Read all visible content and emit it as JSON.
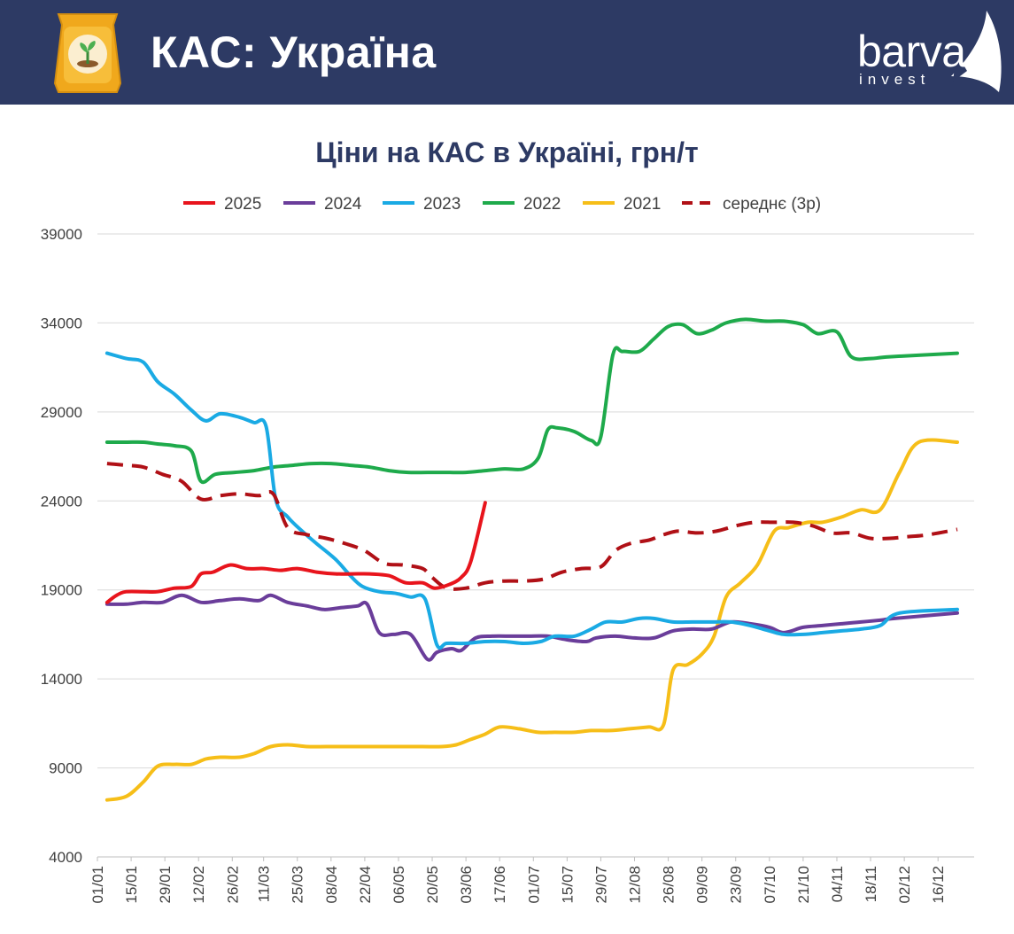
{
  "header": {
    "title": "КАС: Україна",
    "bg_color": "#2d3a64",
    "icon": "fertilizer-bag-icon",
    "brand": {
      "name": "barva",
      "sub": "invest"
    }
  },
  "chart_data": {
    "type": "line",
    "title": "Ціни на КАС в Україні, грн/т",
    "xlabel": "",
    "ylabel": "",
    "ylim": [
      4000,
      39000
    ],
    "yticks": [
      "39000",
      "34000",
      "29000",
      "24000",
      "19000",
      "14000",
      "9000",
      "4000"
    ],
    "x_tick_labels": [
      "01/01",
      "15/01",
      "29/01",
      "12/02",
      "26/02",
      "11/03",
      "25/03",
      "08/04",
      "22/04",
      "06/05",
      "20/05",
      "03/06",
      "17/06",
      "01/07",
      "15/07",
      "29/07",
      "12/08",
      "26/08",
      "09/09",
      "23/09",
      "07/10",
      "21/10",
      "04/11",
      "18/11",
      "02/12",
      "16/12"
    ],
    "x_unit": "day of year",
    "x_range": [
      1,
      365
    ],
    "grid": "horizontal",
    "legend_position": "top",
    "series": [
      {
        "name": "2025",
        "color": "#e8141c",
        "dashed": false,
        "points": [
          [
            5,
            18300
          ],
          [
            9,
            18700
          ],
          [
            13,
            18900
          ],
          [
            20,
            18900
          ],
          [
            26,
            18900
          ],
          [
            33,
            19100
          ],
          [
            40,
            19200
          ],
          [
            44,
            19900
          ],
          [
            49,
            20000
          ],
          [
            56,
            20400
          ],
          [
            63,
            20200
          ],
          [
            70,
            20200
          ],
          [
            77,
            20100
          ],
          [
            84,
            20200
          ],
          [
            92,
            20000
          ],
          [
            100,
            19900
          ],
          [
            107,
            19900
          ],
          [
            114,
            19900
          ],
          [
            122,
            19800
          ],
          [
            129,
            19400
          ],
          [
            136,
            19400
          ],
          [
            141,
            19100
          ],
          [
            147,
            19300
          ],
          [
            152,
            19700
          ],
          [
            156,
            20600
          ],
          [
            162,
            23900
          ]
        ]
      },
      {
        "name": "2024",
        "color": "#6a3d9a",
        "dashed": false,
        "points": [
          [
            5,
            18200
          ],
          [
            13,
            18200
          ],
          [
            20,
            18300
          ],
          [
            28,
            18300
          ],
          [
            36,
            18700
          ],
          [
            44,
            18300
          ],
          [
            52,
            18400
          ],
          [
            60,
            18500
          ],
          [
            68,
            18400
          ],
          [
            73,
            18700
          ],
          [
            80,
            18300
          ],
          [
            88,
            18100
          ],
          [
            95,
            17900
          ],
          [
            102,
            18000
          ],
          [
            109,
            18100
          ],
          [
            113,
            18200
          ],
          [
            118,
            16600
          ],
          [
            124,
            16500
          ],
          [
            131,
            16500
          ],
          [
            138,
            15100
          ],
          [
            142,
            15500
          ],
          [
            148,
            15700
          ],
          [
            152,
            15600
          ],
          [
            158,
            16300
          ],
          [
            165,
            16400
          ],
          [
            173,
            16400
          ],
          [
            180,
            16400
          ],
          [
            188,
            16400
          ],
          [
            196,
            16200
          ],
          [
            204,
            16100
          ],
          [
            208,
            16300
          ],
          [
            216,
            16400
          ],
          [
            224,
            16300
          ],
          [
            232,
            16300
          ],
          [
            240,
            16700
          ],
          [
            248,
            16800
          ],
          [
            256,
            16800
          ],
          [
            264,
            17200
          ],
          [
            272,
            17100
          ],
          [
            280,
            16900
          ],
          [
            286,
            16600
          ],
          [
            294,
            16900
          ],
          [
            302,
            17000
          ],
          [
            310,
            17100
          ],
          [
            318,
            17200
          ],
          [
            326,
            17300
          ],
          [
            332,
            17400
          ],
          [
            358,
            17700
          ]
        ]
      },
      {
        "name": "2023",
        "color": "#1aaae4",
        "dashed": false,
        "points": [
          [
            5,
            32300
          ],
          [
            13,
            32000
          ],
          [
            20,
            31800
          ],
          [
            26,
            30700
          ],
          [
            33,
            30000
          ],
          [
            40,
            29100
          ],
          [
            46,
            28500
          ],
          [
            52,
            28900
          ],
          [
            60,
            28700
          ],
          [
            66,
            28400
          ],
          [
            71,
            28200
          ],
          [
            75,
            24100
          ],
          [
            80,
            23100
          ],
          [
            86,
            22300
          ],
          [
            92,
            21600
          ],
          [
            100,
            20700
          ],
          [
            106,
            19800
          ],
          [
            111,
            19200
          ],
          [
            118,
            18900
          ],
          [
            125,
            18800
          ],
          [
            131,
            18600
          ],
          [
            137,
            18500
          ],
          [
            142,
            15900
          ],
          [
            146,
            16000
          ],
          [
            154,
            16000
          ],
          [
            162,
            16100
          ],
          [
            170,
            16100
          ],
          [
            178,
            16000
          ],
          [
            185,
            16100
          ],
          [
            191,
            16400
          ],
          [
            199,
            16400
          ],
          [
            206,
            16800
          ],
          [
            212,
            17200
          ],
          [
            219,
            17200
          ],
          [
            226,
            17400
          ],
          [
            232,
            17400
          ],
          [
            240,
            17200
          ],
          [
            248,
            17200
          ],
          [
            256,
            17200
          ],
          [
            264,
            17200
          ],
          [
            272,
            17000
          ],
          [
            280,
            16700
          ],
          [
            286,
            16500
          ],
          [
            294,
            16500
          ],
          [
            302,
            16600
          ],
          [
            310,
            16700
          ],
          [
            318,
            16800
          ],
          [
            326,
            17000
          ],
          [
            334,
            17700
          ],
          [
            358,
            17900
          ]
        ]
      },
      {
        "name": "2022",
        "color": "#1eaa4b",
        "dashed": false,
        "points": [
          [
            5,
            27300
          ],
          [
            13,
            27300
          ],
          [
            20,
            27300
          ],
          [
            26,
            27200
          ],
          [
            33,
            27100
          ],
          [
            40,
            26800
          ],
          [
            44,
            25100
          ],
          [
            50,
            25500
          ],
          [
            58,
            25600
          ],
          [
            66,
            25700
          ],
          [
            74,
            25900
          ],
          [
            82,
            26000
          ],
          [
            90,
            26100
          ],
          [
            98,
            26100
          ],
          [
            106,
            26000
          ],
          [
            114,
            25900
          ],
          [
            122,
            25700
          ],
          [
            130,
            25600
          ],
          [
            138,
            25600
          ],
          [
            146,
            25600
          ],
          [
            154,
            25600
          ],
          [
            162,
            25700
          ],
          [
            170,
            25800
          ],
          [
            178,
            25800
          ],
          [
            184,
            26400
          ],
          [
            188,
            28000
          ],
          [
            192,
            28100
          ],
          [
            199,
            27900
          ],
          [
            206,
            27400
          ],
          [
            210,
            27600
          ],
          [
            215,
            32200
          ],
          [
            219,
            32400
          ],
          [
            226,
            32400
          ],
          [
            232,
            33100
          ],
          [
            238,
            33800
          ],
          [
            244,
            33900
          ],
          [
            250,
            33400
          ],
          [
            256,
            33600
          ],
          [
            262,
            34000
          ],
          [
            270,
            34200
          ],
          [
            278,
            34100
          ],
          [
            286,
            34100
          ],
          [
            294,
            33900
          ],
          [
            300,
            33400
          ],
          [
            308,
            33500
          ],
          [
            314,
            32100
          ],
          [
            322,
            32000
          ],
          [
            330,
            32100
          ],
          [
            358,
            32300
          ]
        ]
      },
      {
        "name": "2021",
        "color": "#f6be18",
        "dashed": false,
        "points": [
          [
            5,
            7200
          ],
          [
            13,
            7400
          ],
          [
            20,
            8200
          ],
          [
            26,
            9100
          ],
          [
            33,
            9200
          ],
          [
            40,
            9200
          ],
          [
            46,
            9500
          ],
          [
            52,
            9600
          ],
          [
            60,
            9600
          ],
          [
            66,
            9800
          ],
          [
            73,
            10200
          ],
          [
            80,
            10300
          ],
          [
            88,
            10200
          ],
          [
            96,
            10200
          ],
          [
            104,
            10200
          ],
          [
            112,
            10200
          ],
          [
            120,
            10200
          ],
          [
            128,
            10200
          ],
          [
            136,
            10200
          ],
          [
            144,
            10200
          ],
          [
            150,
            10300
          ],
          [
            156,
            10600
          ],
          [
            162,
            10900
          ],
          [
            168,
            11300
          ],
          [
            176,
            11200
          ],
          [
            184,
            11000
          ],
          [
            191,
            11000
          ],
          [
            199,
            11000
          ],
          [
            206,
            11100
          ],
          [
            214,
            11100
          ],
          [
            222,
            11200
          ],
          [
            230,
            11300
          ],
          [
            236,
            11400
          ],
          [
            240,
            14500
          ],
          [
            246,
            14800
          ],
          [
            252,
            15400
          ],
          [
            257,
            16400
          ],
          [
            262,
            18600
          ],
          [
            268,
            19400
          ],
          [
            275,
            20400
          ],
          [
            282,
            22300
          ],
          [
            288,
            22500
          ],
          [
            296,
            22800
          ],
          [
            302,
            22800
          ],
          [
            310,
            23100
          ],
          [
            318,
            23500
          ],
          [
            326,
            23500
          ],
          [
            334,
            25600
          ],
          [
            342,
            27300
          ],
          [
            358,
            27300
          ]
        ]
      },
      {
        "name": "середнє (3р)",
        "color": "#b01016",
        "dashed": true,
        "points": [
          [
            5,
            26100
          ],
          [
            13,
            26000
          ],
          [
            20,
            25900
          ],
          [
            28,
            25500
          ],
          [
            36,
            25100
          ],
          [
            44,
            24100
          ],
          [
            52,
            24300
          ],
          [
            60,
            24400
          ],
          [
            68,
            24300
          ],
          [
            74,
            24400
          ],
          [
            80,
            22500
          ],
          [
            88,
            22100
          ],
          [
            96,
            21900
          ],
          [
            104,
            21600
          ],
          [
            112,
            21200
          ],
          [
            120,
            20500
          ],
          [
            128,
            20400
          ],
          [
            136,
            20200
          ],
          [
            140,
            19700
          ],
          [
            146,
            19100
          ],
          [
            154,
            19100
          ],
          [
            162,
            19400
          ],
          [
            170,
            19500
          ],
          [
            178,
            19500
          ],
          [
            186,
            19600
          ],
          [
            194,
            20000
          ],
          [
            202,
            20200
          ],
          [
            210,
            20300
          ],
          [
            216,
            21200
          ],
          [
            222,
            21600
          ],
          [
            230,
            21800
          ],
          [
            236,
            22100
          ],
          [
            242,
            22300
          ],
          [
            250,
            22200
          ],
          [
            258,
            22300
          ],
          [
            266,
            22600
          ],
          [
            274,
            22800
          ],
          [
            282,
            22800
          ],
          [
            290,
            22800
          ],
          [
            298,
            22600
          ],
          [
            306,
            22200
          ],
          [
            314,
            22200
          ],
          [
            322,
            21900
          ],
          [
            330,
            21900
          ],
          [
            338,
            22000
          ],
          [
            346,
            22100
          ],
          [
            358,
            22400
          ]
        ]
      }
    ]
  }
}
